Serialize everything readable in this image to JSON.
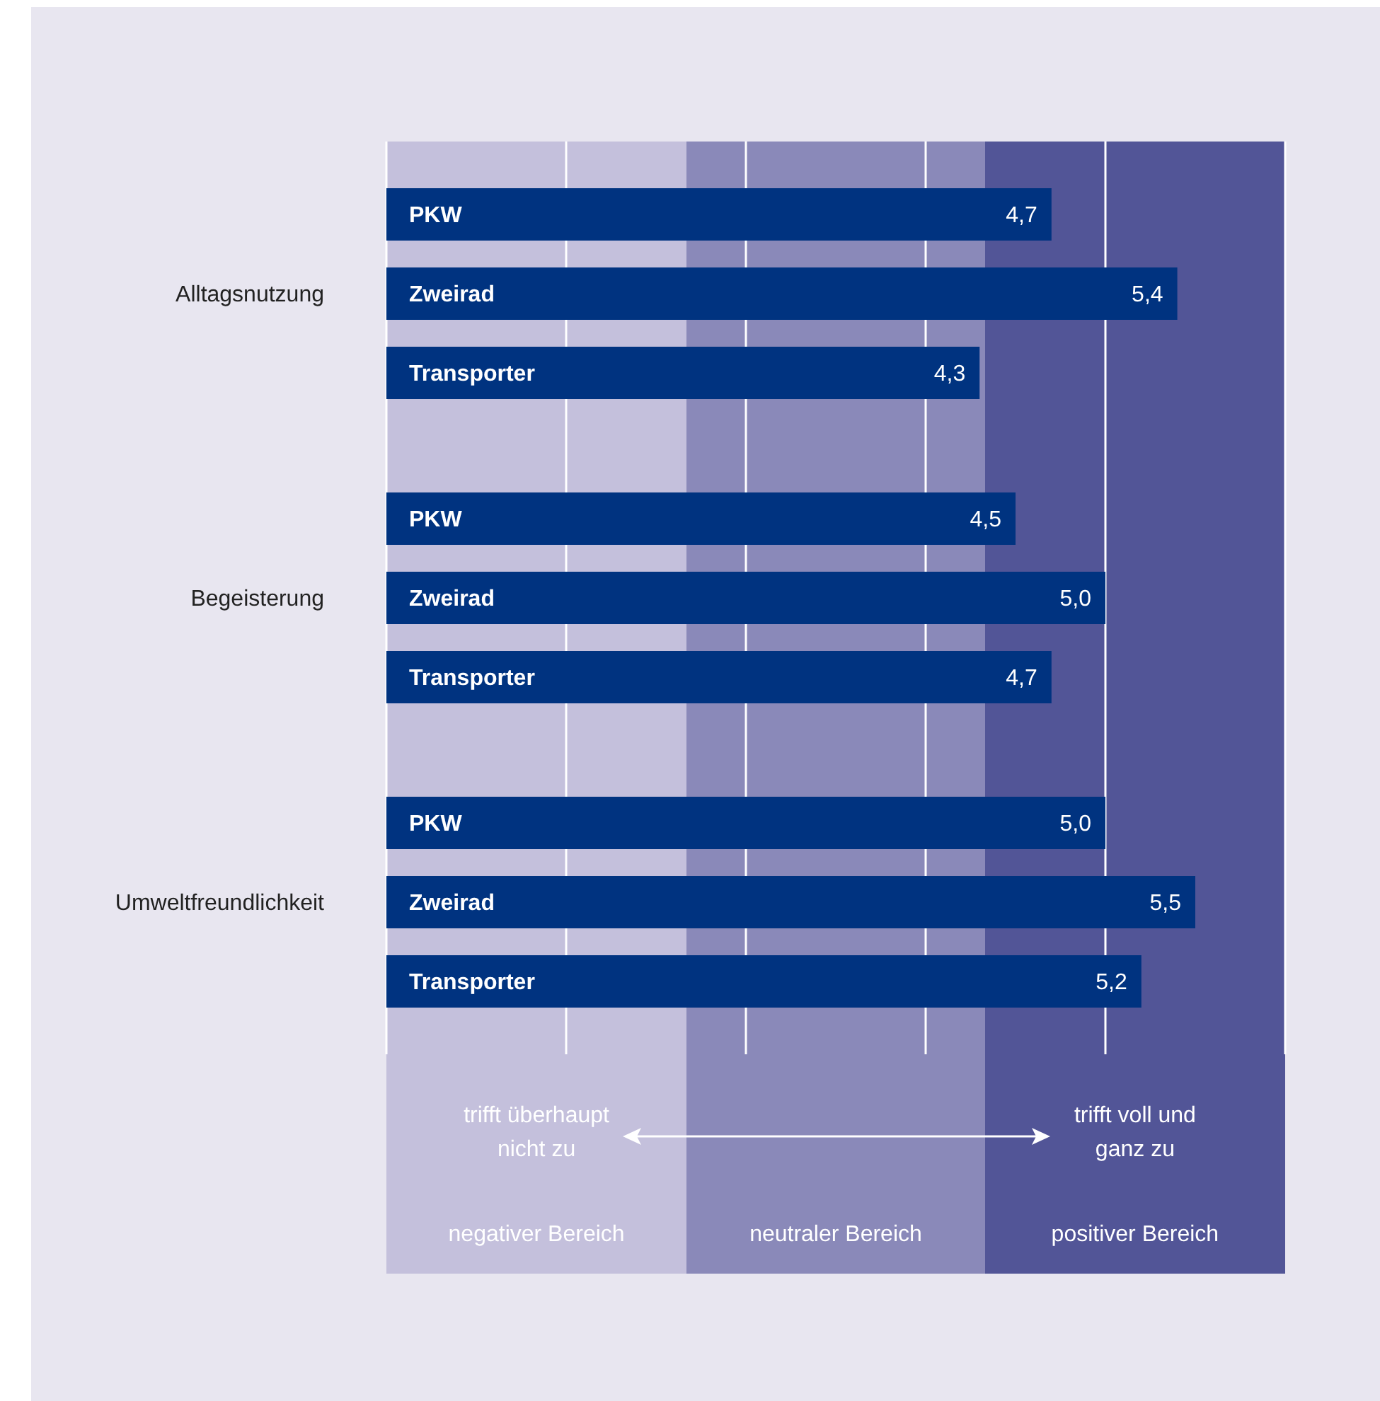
{
  "chart_data": {
    "type": "bar",
    "orientation": "horizontal",
    "categories": [
      "Alltagsnutzung",
      "Begeisterung",
      "Umweltfreundlichkeit"
    ],
    "series": [
      {
        "name": "PKW",
        "color": "#003380",
        "values": [
          4.7,
          4.5,
          5.0
        ],
        "value_labels": [
          "4,7",
          "4,5",
          "5,0"
        ]
      },
      {
        "name": "Zweirad",
        "color": "#003380",
        "values": [
          5.4,
          5.0,
          5.5
        ],
        "value_labels": [
          "5,4",
          "5,0",
          "5,5"
        ]
      },
      {
        "name": "Transporter",
        "color": "#003380",
        "values": [
          4.3,
          4.7,
          5.2
        ],
        "value_labels": [
          "4,3",
          "4,7",
          "5,2"
        ]
      }
    ],
    "xlim": [
      1,
      6
    ],
    "xticks": [
      {
        "value": 2,
        "label": null
      },
      {
        "value": 3,
        "label": null
      },
      {
        "value": 4,
        "label": null
      },
      {
        "value": 5,
        "label": null
      }
    ],
    "grid": "x",
    "tick_labels": "y",
    "bands": [
      {
        "axis": "x",
        "from": 1,
        "to": 2.67,
        "label": "negativer Bereich",
        "color": "#c4c0dc"
      },
      {
        "axis": "x",
        "from": 2.67,
        "to": 4.33,
        "label": "neutraler Bereich",
        "color": "#8a89b9"
      },
      {
        "axis": "x",
        "from": 4.33,
        "to": 6,
        "label": "positiver Bereich",
        "color": "#525597"
      }
    ],
    "annotations": [
      "trifft überhaupt nicht zu",
      "trifft voll und ganz zu"
    ]
  }
}
